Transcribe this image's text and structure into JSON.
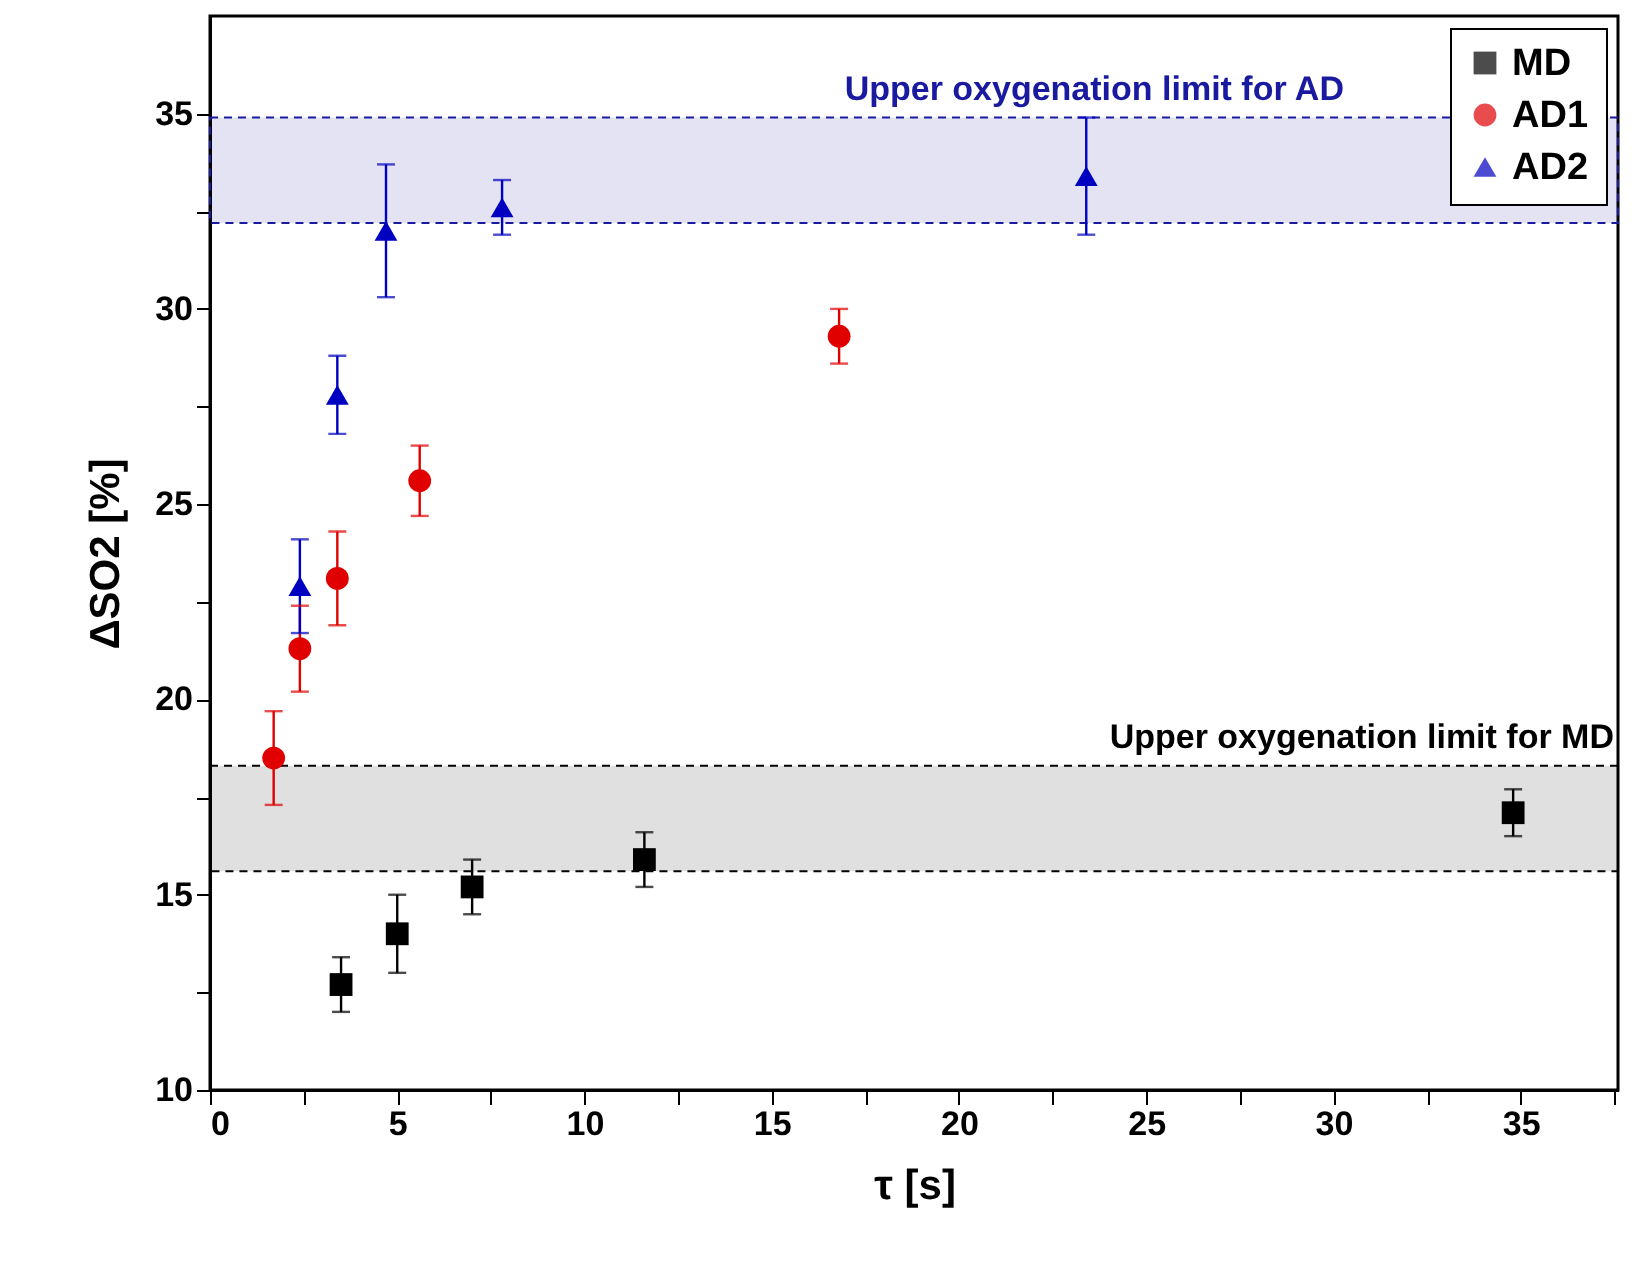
{
  "chart_data": {
    "type": "scatter",
    "xlabel": "τ [s]",
    "ylabel": "ΔSO2 [%]",
    "xlim": [
      0,
      37.6
    ],
    "ylim": [
      10,
      37.5
    ],
    "xticks": [
      0,
      {
        "value": 2.5,
        "label": null
      },
      5,
      {
        "value": 7.5,
        "label": null
      },
      10,
      {
        "value": 12.5,
        "label": null
      },
      15,
      {
        "value": 17.5,
        "label": null
      },
      20,
      {
        "value": 22.5,
        "label": null
      },
      25,
      {
        "value": 27.5,
        "label": null
      },
      30,
      {
        "value": 32.5,
        "label": null
      },
      35,
      {
        "value": 37.5,
        "label": null
      }
    ],
    "yticks": [
      10,
      {
        "value": 12.5,
        "label": null
      },
      15,
      {
        "value": 17.5,
        "label": null
      },
      20,
      {
        "value": 22.5,
        "label": null
      },
      25,
      {
        "value": 27.5,
        "label": null
      },
      30,
      {
        "value": 32.5,
        "label": null
      },
      35
    ],
    "grid": false,
    "legend": "top right",
    "series": [
      {
        "name": "MD",
        "color": "#000000",
        "marker": "square",
        "x": [
          3.5,
          5,
          7,
          11.6,
          34.8
        ],
        "values": [
          12.7,
          14.0,
          15.2,
          15.9,
          17.1
        ],
        "errors": [
          0.7,
          1.0,
          0.7,
          0.7,
          0.6
        ]
      },
      {
        "name": "AD1",
        "color": "#e00000",
        "marker": "circle",
        "x": [
          1.7,
          2.4,
          3.4,
          5.6,
          16.8
        ],
        "values": [
          18.5,
          21.3,
          23.1,
          25.6,
          29.3
        ],
        "errors": [
          1.2,
          1.1,
          1.2,
          0.9,
          0.7
        ]
      },
      {
        "name": "AD2",
        "color": "#0000c0",
        "marker": "triangle",
        "x": [
          2.4,
          3.4,
          4.7,
          7.8,
          23.4
        ],
        "values": [
          22.9,
          27.8,
          32.0,
          32.6,
          33.4
        ],
        "errors": [
          1.2,
          1.0,
          1.7,
          0.7,
          1.5
        ]
      }
    ],
    "bands": [
      {
        "axis": "y",
        "from": 15.6,
        "to": 18.3,
        "label": "Upper oxygenation limit for MD",
        "color": "#000000"
      },
      {
        "axis": "y",
        "from": 32.2,
        "to": 34.9,
        "label": "Upper oxygenation limit for AD",
        "color": "#1a1aa0"
      }
    ]
  }
}
